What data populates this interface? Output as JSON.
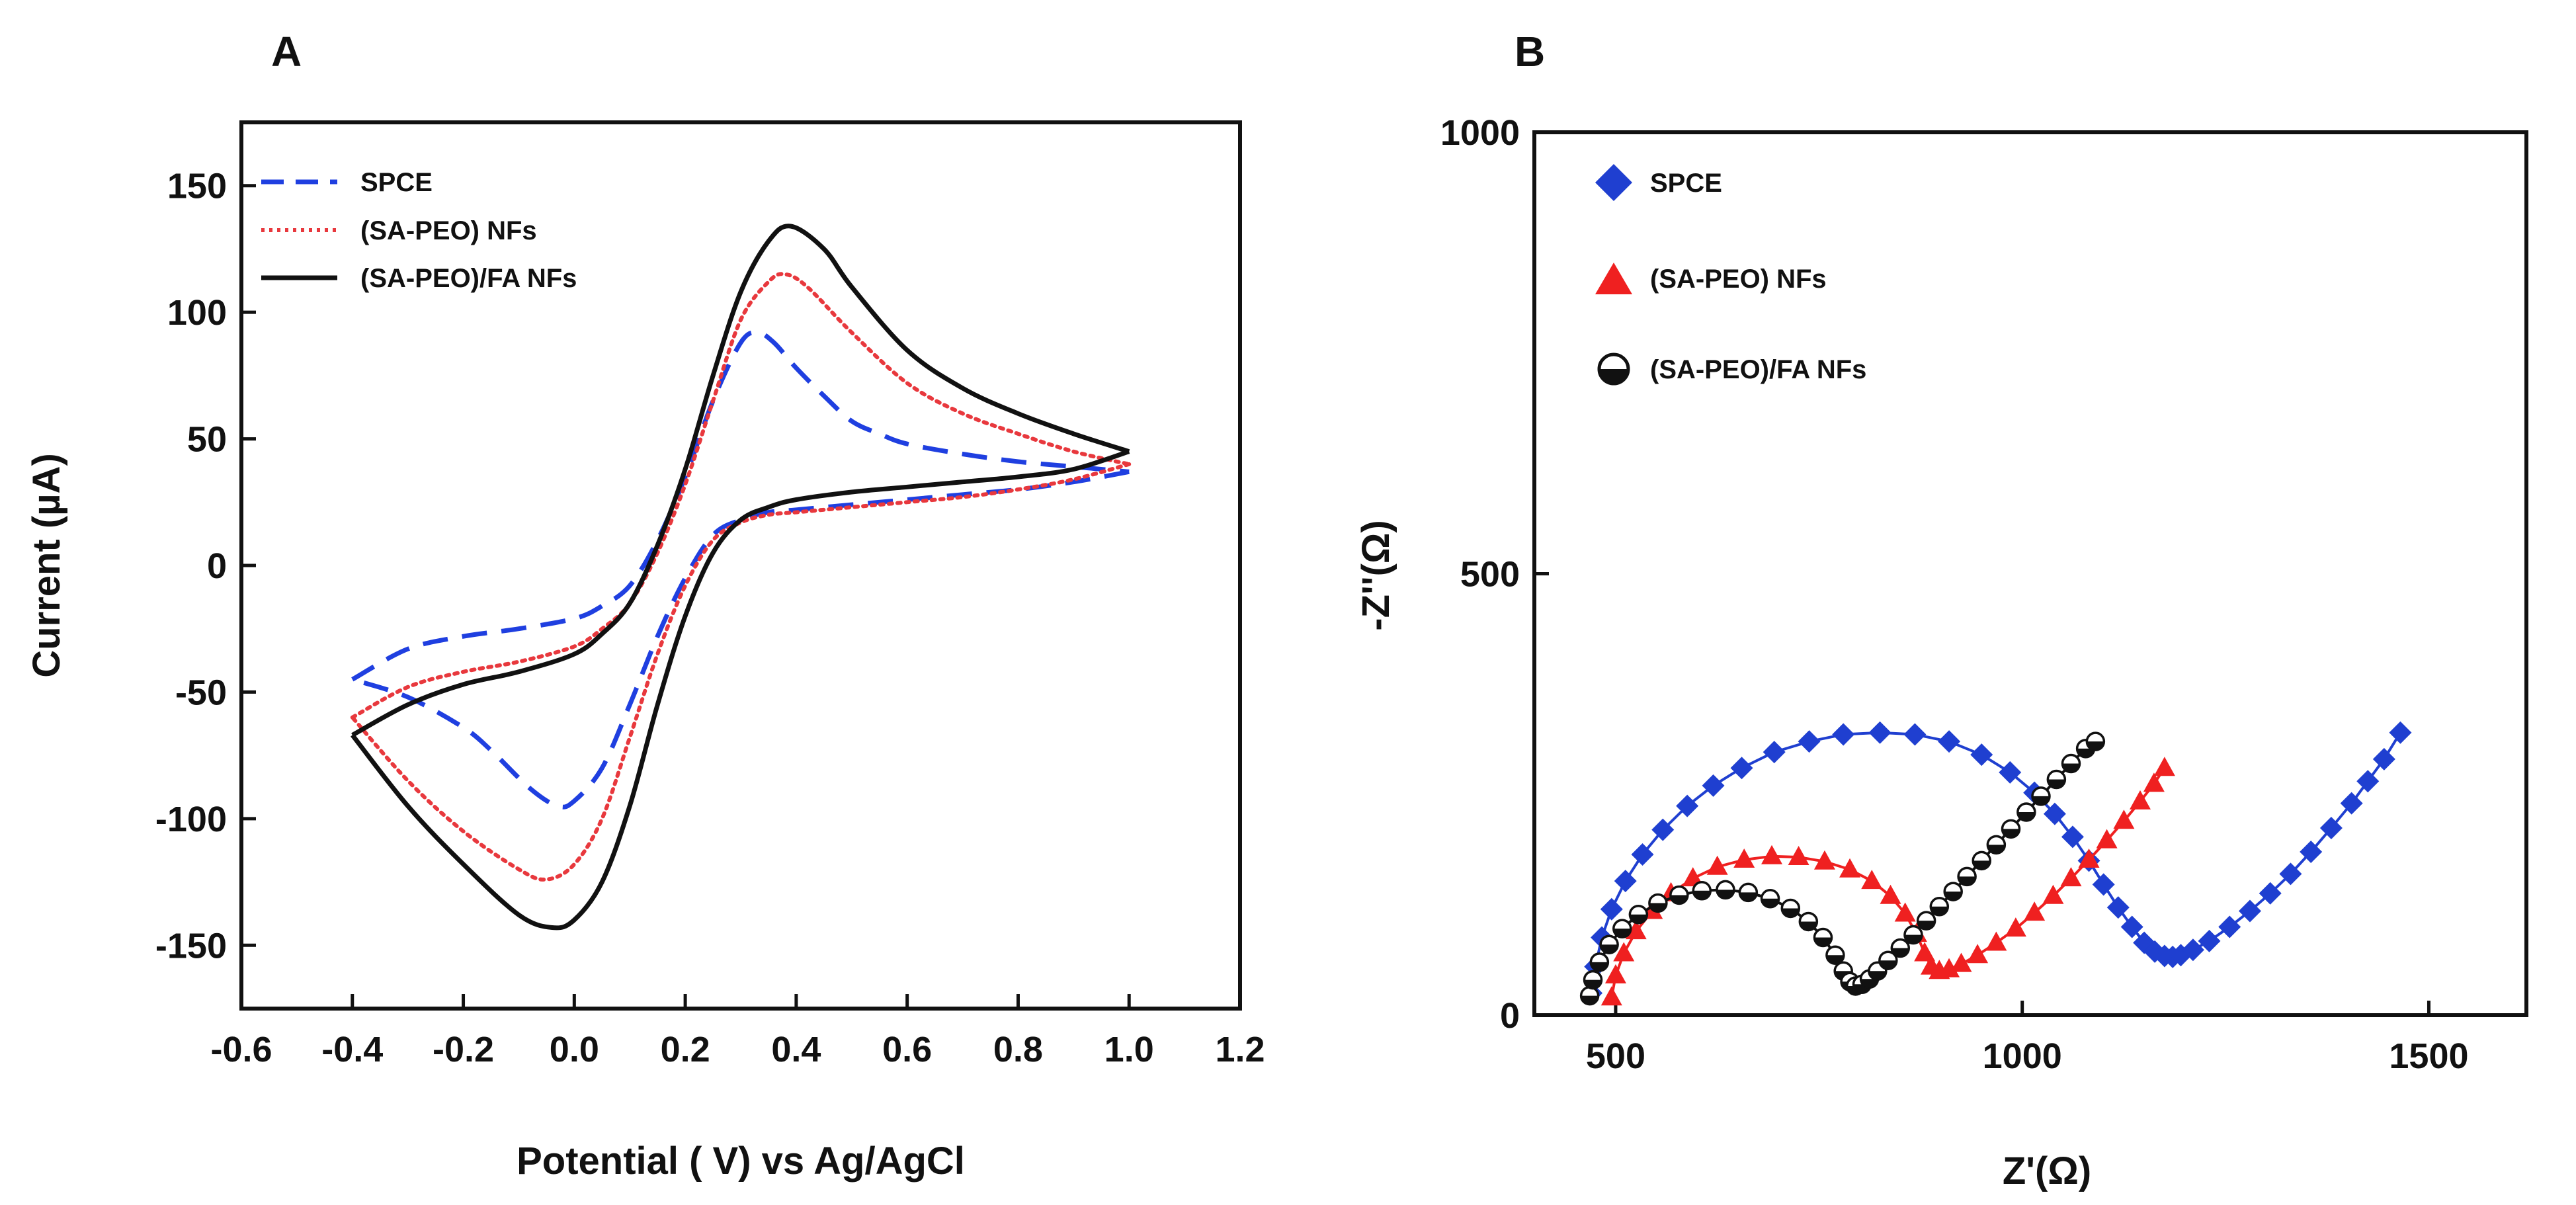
{
  "chart_data": [
    {
      "panel": "A",
      "type": "line",
      "title": "",
      "xlabel": "Potential ( V) vs Ag/AgCl",
      "ylabel": "Current (µA)",
      "xlim": [
        -0.6,
        1.2
      ],
      "ylim": [
        -175,
        175
      ],
      "xticks": [
        "-0.6",
        "-0.4",
        "-0.2",
        "0.0",
        "0.2",
        "0.4",
        "0.6",
        "0.8",
        "1.0",
        "1.2"
      ],
      "yticks": [
        "-150",
        "-100",
        "-50",
        "0",
        "50",
        "100",
        "150"
      ],
      "legend_position": "top-left",
      "grid": false,
      "series": [
        {
          "name": "SPCE",
          "color": "#1f3fe0",
          "style": "dashed",
          "forward": [
            [
              -0.4,
              -45
            ],
            [
              -0.3,
              -33
            ],
            [
              -0.2,
              -28
            ],
            [
              -0.1,
              -25
            ],
            [
              0.0,
              -21
            ],
            [
              0.05,
              -16
            ],
            [
              0.1,
              -8
            ],
            [
              0.15,
              10
            ],
            [
              0.2,
              35
            ],
            [
              0.25,
              65
            ],
            [
              0.3,
              88
            ],
            [
              0.33,
              92
            ],
            [
              0.36,
              88
            ],
            [
              0.4,
              78
            ],
            [
              0.45,
              67
            ],
            [
              0.5,
              57
            ],
            [
              0.55,
              52
            ],
            [
              0.6,
              48
            ],
            [
              0.7,
              44
            ],
            [
              0.8,
              41
            ],
            [
              0.9,
              39
            ],
            [
              1.0,
              37
            ]
          ],
          "reverse": [
            [
              1.0,
              37
            ],
            [
              0.9,
              33
            ],
            [
              0.8,
              30
            ],
            [
              0.7,
              28
            ],
            [
              0.6,
              26
            ],
            [
              0.5,
              24
            ],
            [
              0.4,
              22
            ],
            [
              0.35,
              21
            ],
            [
              0.3,
              18
            ],
            [
              0.25,
              12
            ],
            [
              0.2,
              -5
            ],
            [
              0.15,
              -28
            ],
            [
              0.1,
              -55
            ],
            [
              0.05,
              -80
            ],
            [
              0.0,
              -93
            ],
            [
              -0.03,
              -95
            ],
            [
              -0.08,
              -88
            ],
            [
              -0.15,
              -73
            ],
            [
              -0.2,
              -64
            ],
            [
              -0.3,
              -52
            ],
            [
              -0.4,
              -45
            ]
          ]
        },
        {
          "name": "(SA-PEO) NFs",
          "color": "#e8383d",
          "style": "dotted",
          "forward": [
            [
              -0.4,
              -60
            ],
            [
              -0.3,
              -48
            ],
            [
              -0.2,
              -42
            ],
            [
              -0.1,
              -38
            ],
            [
              0.0,
              -32
            ],
            [
              0.05,
              -25
            ],
            [
              0.1,
              -15
            ],
            [
              0.15,
              5
            ],
            [
              0.2,
              32
            ],
            [
              0.25,
              65
            ],
            [
              0.3,
              97
            ],
            [
              0.35,
              112
            ],
            [
              0.38,
              115
            ],
            [
              0.42,
              110
            ],
            [
              0.5,
              92
            ],
            [
              0.6,
              72
            ],
            [
              0.7,
              60
            ],
            [
              0.8,
              52
            ],
            [
              0.9,
              45
            ],
            [
              1.0,
              40
            ]
          ],
          "reverse": [
            [
              1.0,
              40
            ],
            [
              0.9,
              34
            ],
            [
              0.8,
              30
            ],
            [
              0.7,
              27
            ],
            [
              0.6,
              25
            ],
            [
              0.5,
              23
            ],
            [
              0.4,
              21
            ],
            [
              0.35,
              20
            ],
            [
              0.3,
              17
            ],
            [
              0.25,
              10
            ],
            [
              0.2,
              -8
            ],
            [
              0.15,
              -35
            ],
            [
              0.1,
              -68
            ],
            [
              0.05,
              -100
            ],
            [
              0.0,
              -118
            ],
            [
              -0.05,
              -124
            ],
            [
              -0.1,
              -120
            ],
            [
              -0.2,
              -105
            ],
            [
              -0.3,
              -85
            ],
            [
              -0.4,
              -60
            ]
          ]
        },
        {
          "name": "(SA-PEO)/FA NFs",
          "color": "#111111",
          "style": "solid",
          "forward": [
            [
              -0.4,
              -67
            ],
            [
              -0.3,
              -55
            ],
            [
              -0.2,
              -47
            ],
            [
              -0.1,
              -42
            ],
            [
              0.0,
              -35
            ],
            [
              0.05,
              -27
            ],
            [
              0.1,
              -15
            ],
            [
              0.15,
              8
            ],
            [
              0.2,
              38
            ],
            [
              0.25,
              75
            ],
            [
              0.3,
              108
            ],
            [
              0.35,
              128
            ],
            [
              0.39,
              134
            ],
            [
              0.45,
              125
            ],
            [
              0.5,
              110
            ],
            [
              0.6,
              85
            ],
            [
              0.7,
              70
            ],
            [
              0.8,
              60
            ],
            [
              0.9,
              52
            ],
            [
              1.0,
              45
            ]
          ],
          "reverse": [
            [
              1.0,
              45
            ],
            [
              0.9,
              38
            ],
            [
              0.8,
              35
            ],
            [
              0.7,
              33
            ],
            [
              0.6,
              31
            ],
            [
              0.5,
              29
            ],
            [
              0.4,
              26
            ],
            [
              0.35,
              23
            ],
            [
              0.3,
              18
            ],
            [
              0.25,
              5
            ],
            [
              0.2,
              -20
            ],
            [
              0.15,
              -55
            ],
            [
              0.1,
              -95
            ],
            [
              0.05,
              -125
            ],
            [
              0.0,
              -140
            ],
            [
              -0.04,
              -143
            ],
            [
              -0.1,
              -138
            ],
            [
              -0.2,
              -118
            ],
            [
              -0.3,
              -95
            ],
            [
              -0.4,
              -67
            ]
          ]
        }
      ]
    },
    {
      "panel": "B",
      "type": "scatter",
      "title": "",
      "xlabel": "Z'(Ω)",
      "ylabel": "-Z''(Ω)",
      "xlim": [
        400,
        1620
      ],
      "ylim": [
        0,
        1000
      ],
      "xticks": [
        "500",
        "1000",
        "1500"
      ],
      "yticks": [
        "0",
        "500",
        "1000"
      ],
      "legend_position": "top-left",
      "grid": false,
      "series": [
        {
          "name": "SPCE",
          "color": "#1f3fd0",
          "marker": "diamond",
          "points": [
            [
              470,
              25
            ],
            [
              475,
              55
            ],
            [
              483,
              88
            ],
            [
              495,
              120
            ],
            [
              512,
              152
            ],
            [
              533,
              182
            ],
            [
              558,
              210
            ],
            [
              588,
              237
            ],
            [
              620,
              260
            ],
            [
              655,
              280
            ],
            [
              695,
              298
            ],
            [
              738,
              310
            ],
            [
              780,
              318
            ],
            [
              825,
              320
            ],
            [
              868,
              318
            ],
            [
              910,
              310
            ],
            [
              950,
              295
            ],
            [
              985,
              275
            ],
            [
              1015,
              252
            ],
            [
              1040,
              228
            ],
            [
              1062,
              202
            ],
            [
              1082,
              175
            ],
            [
              1100,
              148
            ],
            [
              1118,
              122
            ],
            [
              1135,
              100
            ],
            [
              1150,
              82
            ],
            [
              1163,
              72
            ],
            [
              1175,
              67
            ],
            [
              1185,
              66
            ],
            [
              1195,
              68
            ],
            [
              1210,
              74
            ],
            [
              1230,
              84
            ],
            [
              1255,
              100
            ],
            [
              1280,
              118
            ],
            [
              1305,
              138
            ],
            [
              1330,
              160
            ],
            [
              1355,
              185
            ],
            [
              1380,
              212
            ],
            [
              1405,
              240
            ],
            [
              1425,
              265
            ],
            [
              1445,
              290
            ],
            [
              1465,
              320
            ]
          ]
        },
        {
          "name": "(SA-PEO) NFs",
          "color": "#ef2020",
          "marker": "triangle",
          "points": [
            [
              495,
              20
            ],
            [
              500,
              45
            ],
            [
              510,
              70
            ],
            [
              525,
              95
            ],
            [
              545,
              118
            ],
            [
              568,
              138
            ],
            [
              595,
              155
            ],
            [
              625,
              168
            ],
            [
              658,
              176
            ],
            [
              692,
              180
            ],
            [
              725,
              179
            ],
            [
              757,
              174
            ],
            [
              788,
              165
            ],
            [
              815,
              152
            ],
            [
              838,
              135
            ],
            [
              856,
              115
            ],
            [
              870,
              92
            ],
            [
              880,
              70
            ],
            [
              888,
              55
            ],
            [
              898,
              50
            ],
            [
              910,
              52
            ],
            [
              925,
              58
            ],
            [
              945,
              68
            ],
            [
              968,
              82
            ],
            [
              992,
              98
            ],
            [
              1015,
              116
            ],
            [
              1038,
              135
            ],
            [
              1060,
              155
            ],
            [
              1082,
              176
            ],
            [
              1104,
              198
            ],
            [
              1125,
              220
            ],
            [
              1145,
              242
            ],
            [
              1162,
              262
            ],
            [
              1175,
              280
            ]
          ]
        },
        {
          "name": "(SA-PEO)/FA NFs",
          "color": "#111111",
          "marker": "circle",
          "points": [
            [
              468,
              22
            ],
            [
              472,
              40
            ],
            [
              480,
              60
            ],
            [
              492,
              80
            ],
            [
              508,
              98
            ],
            [
              528,
              114
            ],
            [
              552,
              127
            ],
            [
              578,
              136
            ],
            [
              606,
              141
            ],
            [
              635,
              142
            ],
            [
              663,
              139
            ],
            [
              690,
              132
            ],
            [
              715,
              121
            ],
            [
              737,
              106
            ],
            [
              755,
              88
            ],
            [
              770,
              68
            ],
            [
              780,
              50
            ],
            [
              788,
              38
            ],
            [
              795,
              33
            ],
            [
              803,
              35
            ],
            [
              812,
              41
            ],
            [
              822,
              50
            ],
            [
              835,
              62
            ],
            [
              850,
              76
            ],
            [
              866,
              91
            ],
            [
              882,
              107
            ],
            [
              898,
              123
            ],
            [
              915,
              140
            ],
            [
              932,
              157
            ],
            [
              950,
              175
            ],
            [
              968,
              193
            ],
            [
              986,
              211
            ],
            [
              1005,
              230
            ],
            [
              1023,
              248
            ],
            [
              1042,
              267
            ],
            [
              1060,
              285
            ],
            [
              1078,
              302
            ],
            [
              1090,
              310
            ]
          ]
        }
      ]
    }
  ],
  "panels": {
    "a": {
      "letter": "A",
      "xlabel": "Potential ( V) vs Ag/AgCl",
      "ylabel": "Current (µA)",
      "xticks": [
        "-0.6",
        "-0.4",
        "-0.2",
        "0.0",
        "0.2",
        "0.4",
        "0.6",
        "0.8",
        "1.0",
        "1.2"
      ],
      "yticks": [
        "-150",
        "-100",
        "-50",
        "0",
        "50",
        "100",
        "150"
      ],
      "legend": [
        "SPCE",
        "(SA-PEO) NFs",
        "(SA-PEO)/FA NFs"
      ]
    },
    "b": {
      "letter": "B",
      "xlabel": "Z'(Ω)",
      "ylabel": "-Z''(Ω)",
      "xticks": [
        "500",
        "1000",
        "1500"
      ],
      "yticks": [
        "0",
        "500",
        "1000"
      ],
      "legend": [
        "SPCE",
        "(SA-PEO) NFs",
        "(SA-PEO)/FA NFs"
      ]
    }
  }
}
